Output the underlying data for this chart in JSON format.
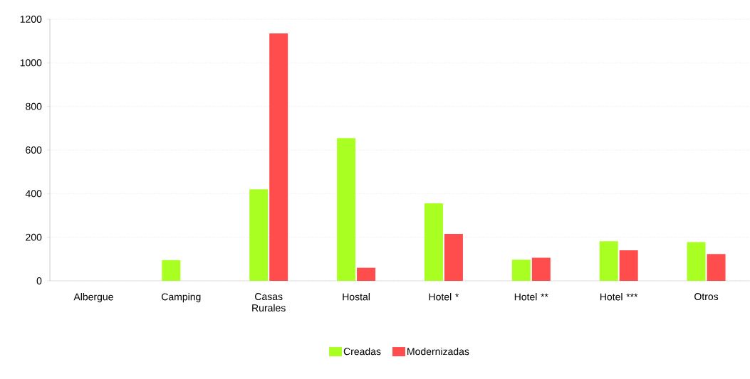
{
  "chart_data": {
    "type": "bar",
    "categories": [
      "Albergue",
      "Camping",
      "Casas Rurales",
      "Hostal",
      "Hotel *",
      "Hotel **",
      "Hotel ***",
      "Otros"
    ],
    "series": [
      {
        "name": "Creadas",
        "color": "#aaff22",
        "values": [
          0,
          95,
          420,
          655,
          355,
          97,
          182,
          178
        ]
      },
      {
        "name": "Modernizadas",
        "color": "#ff4d4d",
        "values": [
          0,
          0,
          1135,
          60,
          215,
          106,
          140,
          123
        ]
      }
    ],
    "ylim": [
      0,
      1200
    ],
    "yticks": [
      0,
      200,
      400,
      600,
      800,
      1000,
      1200
    ],
    "grid": "y",
    "legend": "bottom"
  }
}
